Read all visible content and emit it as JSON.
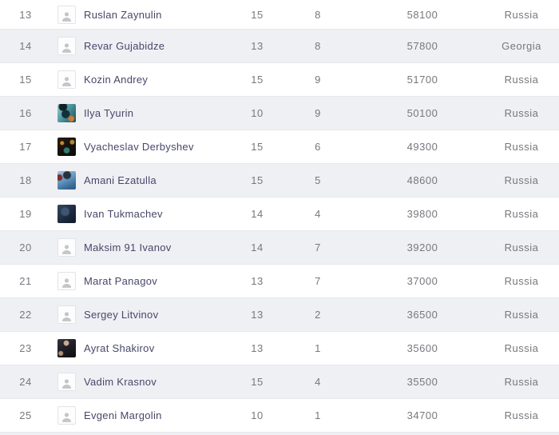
{
  "table": {
    "rows": [
      {
        "rank": "13",
        "name": "Ruslan Zaynulin",
        "avatar": "placeholder",
        "stat1": "15",
        "stat2": "8",
        "score": "58100",
        "country": "Russia"
      },
      {
        "rank": "14",
        "name": "Revar Gujabidze",
        "avatar": "placeholder",
        "stat1": "13",
        "stat2": "8",
        "score": "57800",
        "country": "Georgia"
      },
      {
        "rank": "15",
        "name": "Kozin Andrey",
        "avatar": "placeholder",
        "stat1": "15",
        "stat2": "9",
        "score": "51700",
        "country": "Russia"
      },
      {
        "rank": "16",
        "name": "Ilya Tyurin",
        "avatar": "photo-teal",
        "stat1": "10",
        "stat2": "9",
        "score": "50100",
        "country": "Russia"
      },
      {
        "rank": "17",
        "name": "Vyacheslav Derbyshev",
        "avatar": "photo-darkglow",
        "stat1": "15",
        "stat2": "6",
        "score": "49300",
        "country": "Russia"
      },
      {
        "rank": "18",
        "name": "Amani Ezatulla",
        "avatar": "photo-blue",
        "stat1": "15",
        "stat2": "5",
        "score": "48600",
        "country": "Russia"
      },
      {
        "rank": "19",
        "name": "Ivan Tukmachev",
        "avatar": "photo-navy",
        "stat1": "14",
        "stat2": "4",
        "score": "39800",
        "country": "Russia"
      },
      {
        "rank": "20",
        "name": "Maksim 91 Ivanov",
        "avatar": "placeholder",
        "stat1": "14",
        "stat2": "7",
        "score": "39200",
        "country": "Russia"
      },
      {
        "rank": "21",
        "name": "Marat Panagov",
        "avatar": "placeholder",
        "stat1": "13",
        "stat2": "7",
        "score": "37000",
        "country": "Russia"
      },
      {
        "rank": "22",
        "name": "Sergey Litvinov",
        "avatar": "placeholder",
        "stat1": "13",
        "stat2": "2",
        "score": "36500",
        "country": "Russia"
      },
      {
        "rank": "23",
        "name": "Ayrat Shakirov",
        "avatar": "photo-black",
        "stat1": "13",
        "stat2": "1",
        "score": "35600",
        "country": "Russia"
      },
      {
        "rank": "24",
        "name": "Vadim Krasnov",
        "avatar": "placeholder",
        "stat1": "15",
        "stat2": "4",
        "score": "35500",
        "country": "Russia"
      },
      {
        "rank": "25",
        "name": "Evgeni Margolin",
        "avatar": "placeholder",
        "stat1": "10",
        "stat2": "1",
        "score": "34700",
        "country": "Russia"
      }
    ]
  },
  "colors": {
    "row_alt_background": "#eff0f4",
    "row_border": "#e7e8ec",
    "name_text": "#47476a",
    "muted_text": "#76787d"
  }
}
